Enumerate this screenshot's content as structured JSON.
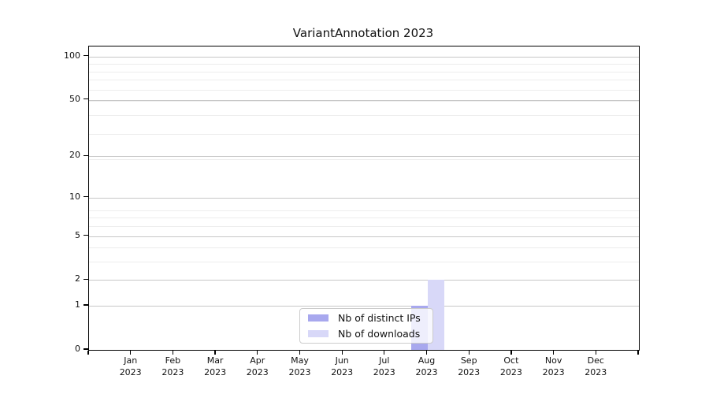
{
  "title": "VariantAnnotation 2023",
  "colors": {
    "ips_bar": "#a8a8ee",
    "downloads_bar": "#d8d8f8",
    "grid_major": "#c7c7c7",
    "grid_minor": "#ededed",
    "axis": "#000000",
    "legend_border": "#cccccc"
  },
  "y_axis": {
    "tick_values": [
      0,
      1,
      2,
      5,
      10,
      20,
      50,
      100
    ],
    "minor_gridline_values": [
      1,
      2,
      3,
      4,
      5,
      6,
      7,
      8,
      19,
      29,
      39,
      49,
      59,
      69,
      79,
      89
    ]
  },
  "x_axis": {
    "months": [
      "Jan",
      "Feb",
      "Mar",
      "Apr",
      "May",
      "Jun",
      "Jul",
      "Aug",
      "Sep",
      "Oct",
      "Nov",
      "Dec"
    ],
    "year": "2023"
  },
  "legend": {
    "items": [
      {
        "label": "Nb of distinct IPs",
        "color_key": "ips_bar"
      },
      {
        "label": "Nb of downloads",
        "color_key": "downloads_bar"
      }
    ]
  },
  "chart_data": {
    "type": "bar",
    "title": "VariantAnnotation 2023",
    "categories": [
      "Jan 2023",
      "Feb 2023",
      "Mar 2023",
      "Apr 2023",
      "May 2023",
      "Jun 2023",
      "Jul 2023",
      "Aug 2023",
      "Sep 2023",
      "Oct 2023",
      "Nov 2023",
      "Dec 2023"
    ],
    "series": [
      {
        "name": "Nb of distinct IPs",
        "color": "#a8a8ee",
        "values": [
          0,
          0,
          0,
          0,
          0,
          0,
          0,
          1,
          0,
          0,
          0,
          0
        ]
      },
      {
        "name": "Nb of downloads",
        "color": "#d8d8f8",
        "values": [
          0,
          0,
          0,
          0,
          0,
          0,
          0,
          2,
          0,
          0,
          0,
          0
        ]
      }
    ],
    "xlabel": "",
    "ylabel": "",
    "yscale": "log1p",
    "y_tick_values": [
      0,
      1,
      2,
      5,
      10,
      20,
      50,
      100
    ],
    "ylim": [
      0,
      117
    ],
    "grid": true,
    "legend_position": "lower center inside"
  }
}
